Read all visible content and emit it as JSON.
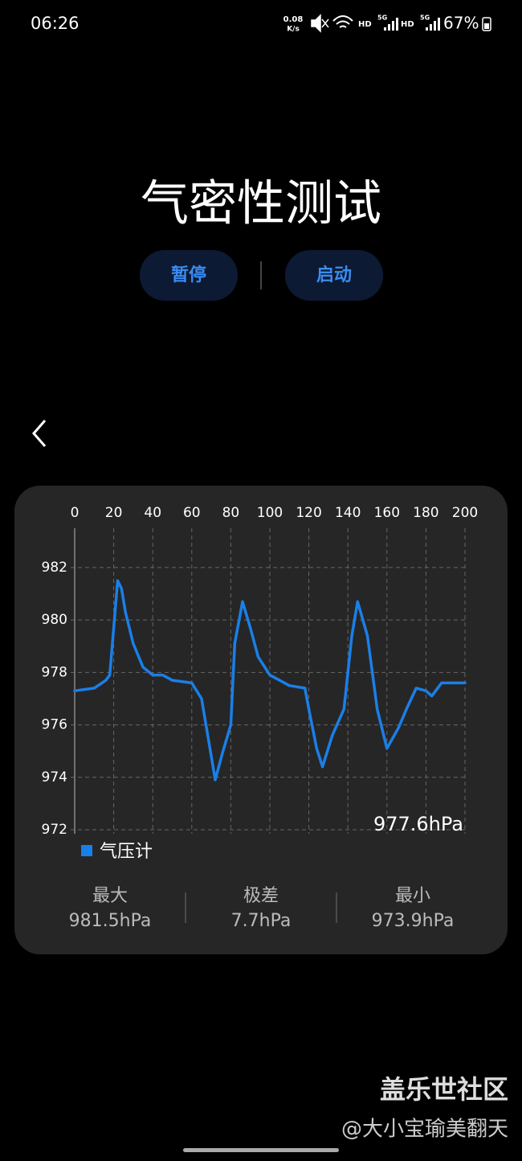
{
  "status_bar": {
    "time": "06:26",
    "speed": "0.08",
    "speed_unit": "K/s",
    "hd_1": "HD",
    "net_1": "5G",
    "hd_2": "HD",
    "net_2": "5G",
    "battery": "67%"
  },
  "header": {
    "title": "气密性测试"
  },
  "buttons": [
    "暂停",
    "启动"
  ],
  "chart_data": {
    "type": "line",
    "x": [
      0,
      10,
      16,
      18,
      20,
      22,
      24,
      26,
      30,
      35,
      40,
      45,
      50,
      60,
      65,
      70,
      72,
      76,
      80,
      82,
      86,
      90,
      94,
      100,
      110,
      118,
      120,
      124,
      127,
      132,
      138,
      142,
      145,
      150,
      155,
      160,
      166,
      170,
      175,
      180,
      183,
      188,
      200
    ],
    "series": [
      {
        "name": "气压计",
        "color": "#1a7fe8",
        "values": [
          977.3,
          977.4,
          977.7,
          977.9,
          979.7,
          981.5,
          981.2,
          980.3,
          979.1,
          978.2,
          977.9,
          977.9,
          977.7,
          977.6,
          977.0,
          974.8,
          973.9,
          975.0,
          976.0,
          979.1,
          980.7,
          979.7,
          978.6,
          977.9,
          977.5,
          977.4,
          976.6,
          975.1,
          974.4,
          975.6,
          976.6,
          979.4,
          980.7,
          979.4,
          976.6,
          975.1,
          975.9,
          976.6,
          977.4,
          977.3,
          977.1,
          977.6,
          977.6
        ]
      }
    ],
    "xlim": [
      0,
      200
    ],
    "xticks": [
      0,
      20,
      40,
      60,
      80,
      100,
      120,
      140,
      160,
      180,
      200
    ],
    "ylim": [
      972,
      983.5
    ],
    "yticks": [
      972,
      974,
      976,
      978,
      980,
      982
    ],
    "grid": true,
    "annotation": "977.6hPa"
  },
  "stats": [
    {
      "label": "最大",
      "value": "981.5hPa"
    },
    {
      "label": "极差",
      "value": "7.7hPa"
    },
    {
      "label": "最小",
      "value": "973.9hPa"
    }
  ],
  "watermark": {
    "brand": "盖乐世社区",
    "user": "@大小宝瑜美翻天"
  }
}
